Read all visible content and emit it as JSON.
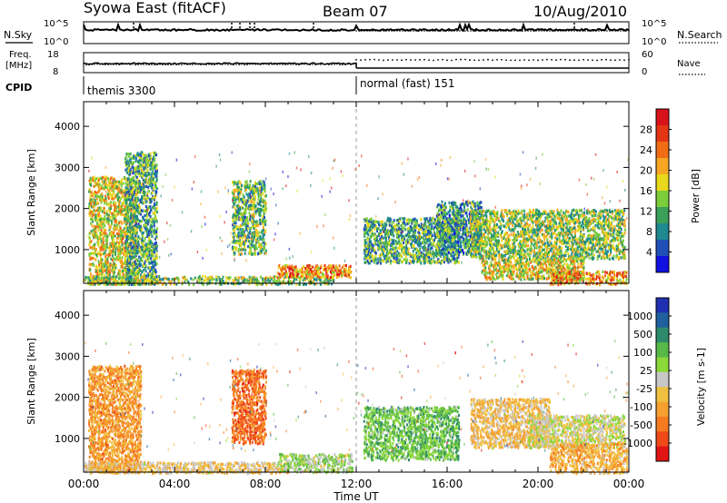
{
  "header": {
    "station": "Syowa East (fitACF)",
    "beam": "Beam 07",
    "date": "10/Aug/2010"
  },
  "aux_panels": {
    "nsky_label": "N.Sky",
    "nsearch_label": "N.Search",
    "freq_label_1": "Freq.",
    "freq_label_2": "[MHz]",
    "nave_label": "Nave",
    "cpid_label": "CPID",
    "noise_ticks": [
      "10^5",
      "10^0"
    ],
    "freq_ticks": [
      "18",
      "8"
    ],
    "nave_ticks": [
      "60",
      "0"
    ],
    "cpid_segments": [
      {
        "label": "themis 3300",
        "start_h": 0
      },
      {
        "label": "normal (fast) 151",
        "start_h": 12
      }
    ]
  },
  "chart_data": [
    {
      "type": "heatmap",
      "title": "Power",
      "xlabel": "Time UT",
      "ylabel": "Slant Range [km]",
      "xlim": [
        0,
        24
      ],
      "ylim": [
        180,
        4600
      ],
      "xticks": [
        "00:00",
        "04:00",
        "08:00",
        "12:00",
        "16:00",
        "20:00",
        "00:00"
      ],
      "yticks": [
        "1000",
        "2000",
        "3000",
        "4000"
      ],
      "colorbar": {
        "label": "Power [dB]",
        "ticks": [
          "4",
          "8",
          "12",
          "16",
          "20",
          "24",
          "28"
        ],
        "range": [
          0,
          30
        ],
        "colors": [
          "#1010e0",
          "#2050b8",
          "#1e8a90",
          "#3aa05a",
          "#7ccd3a",
          "#e8d81c",
          "#f5a623",
          "#f06d16",
          "#e43515",
          "#d8121a"
        ]
      },
      "echo_regions": [
        {
          "t": [
            0.2,
            2.3
          ],
          "r": [
            180,
            2800
          ],
          "level": 0.55
        },
        {
          "t": [
            1.8,
            3.2
          ],
          "r": [
            180,
            3400
          ],
          "level": 0.35
        },
        {
          "t": [
            0.0,
            11.0
          ],
          "r": [
            180,
            380
          ],
          "level": 0.45
        },
        {
          "t": [
            6.5,
            8.0
          ],
          "r": [
            900,
            2700
          ],
          "level": 0.4
        },
        {
          "t": [
            8.5,
            11.8
          ],
          "r": [
            350,
            650
          ],
          "level": 0.7
        },
        {
          "t": [
            12.3,
            16.5
          ],
          "r": [
            700,
            1800
          ],
          "level": 0.35
        },
        {
          "t": [
            15.5,
            17.5
          ],
          "r": [
            900,
            2200
          ],
          "level": 0.3
        },
        {
          "t": [
            17.0,
            23.8
          ],
          "r": [
            800,
            2000
          ],
          "level": 0.45
        },
        {
          "t": [
            17.5,
            22.0
          ],
          "r": [
            300,
            800
          ],
          "level": 0.55
        },
        {
          "t": [
            20.5,
            23.9
          ],
          "r": [
            180,
            500
          ],
          "level": 0.7
        }
      ]
    },
    {
      "type": "heatmap",
      "title": "Velocity",
      "xlabel": "Time UT",
      "ylabel": "Slant Range [km]",
      "xlim": [
        0,
        24
      ],
      "ylim": [
        180,
        4600
      ],
      "xticks": [
        "00:00",
        "04:00",
        "08:00",
        "12:00",
        "16:00",
        "20:00",
        "00:00"
      ],
      "yticks": [
        "1000",
        "2000",
        "3000",
        "4000"
      ],
      "colorbar": {
        "label": "Velocity [m s-1]",
        "ticks": [
          "1000",
          "500",
          "100",
          "25",
          "-25",
          "-100",
          "-500",
          "-1000"
        ],
        "range": [
          -1000,
          1000
        ],
        "colors": [
          "#2030b0",
          "#20609e",
          "#2e8a6a",
          "#58b848",
          "#8ad83a",
          "#c8c8c8",
          "#f0c040",
          "#f5a030",
          "#f57a20",
          "#ef4a18",
          "#e01414"
        ]
      },
      "echo_regions": [
        {
          "t": [
            0.2,
            2.5
          ],
          "r": [
            180,
            2800
          ],
          "v": -400
        },
        {
          "t": [
            0.0,
            9.0
          ],
          "r": [
            180,
            450
          ],
          "v": -150
        },
        {
          "t": [
            6.5,
            8.0
          ],
          "r": [
            900,
            2700
          ],
          "v": -600
        },
        {
          "t": [
            8.5,
            11.8
          ],
          "r": [
            200,
            650
          ],
          "v": 120
        },
        {
          "t": [
            12.3,
            16.5
          ],
          "r": [
            500,
            1800
          ],
          "v": 300
        },
        {
          "t": [
            17.0,
            20.5
          ],
          "r": [
            800,
            2000
          ],
          "v": -200
        },
        {
          "t": [
            19.5,
            23.8
          ],
          "r": [
            800,
            1600
          ],
          "v": 0
        },
        {
          "t": [
            20.5,
            23.9
          ],
          "r": [
            180,
            900
          ],
          "v": -300
        }
      ]
    }
  ]
}
